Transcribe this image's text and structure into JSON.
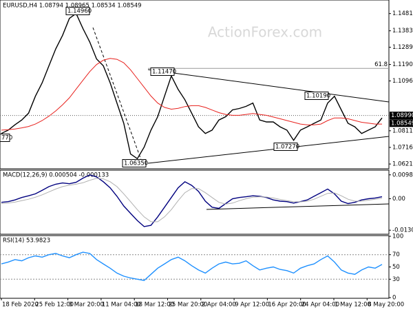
{
  "chart_data": [
    {
      "type": "line",
      "title": "EURUSD,H4 1.08794 1.08965 1.08534 1.08549",
      "watermark": "ActionForex.com",
      "x_labels": [
        "18 Feb 2020",
        "25 Feb 12:00",
        "3 Mar 20:00",
        "11 Mar 04:00",
        "18 Mar 12:00",
        "25 Mar 20:00",
        "2 Apr 04:00",
        "9 Apr 12:00",
        "16 Apr 20:00",
        "24 Apr 04:00",
        "1 May 12:00",
        "8 May 20:00"
      ],
      "series": [
        {
          "color": "#000000",
          "values": [
            1.0796,
            1.0815,
            1.0846,
            1.0873,
            1.0912,
            1.1009,
            1.1086,
            1.1183,
            1.128,
            1.1357,
            1.1454,
            1.1482,
            1.1396,
            1.1319,
            1.1222,
            1.1183,
            1.1086,
            1.097,
            1.0854,
            1.0679,
            1.0652,
            1.0718,
            1.0815,
            1.0892,
            1.1009,
            1.1125,
            1.1048,
            1.0989,
            1.0912,
            1.0834,
            1.0796,
            1.0815,
            1.0873,
            1.0892,
            1.0931,
            1.0939,
            1.0951,
            1.097,
            1.0873,
            1.0862,
            1.0862,
            1.0834,
            1.0815,
            1.0757,
            1.0815,
            1.0834,
            1.0854,
            1.0873,
            1.097,
            1.1009,
            1.0931,
            1.0854,
            1.0834,
            1.0796,
            1.0815,
            1.0834,
            1.0885
          ]
        },
        {
          "color": "#e8201c",
          "values": [
            1.0815,
            1.0818,
            1.0822,
            1.0828,
            1.0836,
            1.085,
            1.087,
            1.0895,
            1.0925,
            1.096,
            1.1,
            1.105,
            1.11,
            1.115,
            1.119,
            1.1215,
            1.1225,
            1.122,
            1.12,
            1.116,
            1.111,
            1.106,
            1.101,
            1.097,
            1.0945,
            1.0935,
            1.094,
            1.095,
            1.0955,
            1.0955,
            1.0945,
            1.093,
            1.0915,
            1.0905,
            1.09,
            1.09,
            1.0905,
            1.091,
            1.0905,
            1.09,
            1.089,
            1.088,
            1.087,
            1.086,
            1.085,
            1.0845,
            1.0845,
            1.085,
            1.087,
            1.0885,
            1.0885,
            1.088,
            1.087,
            1.086,
            1.0855,
            1.085,
            1.085
          ]
        }
      ],
      "ylim": [
        1.06021,
        1.15512
      ],
      "yticks": [
        {
          "value": 1.14815,
          "label": "1.14815"
        },
        {
          "value": 1.1383,
          "label": "1.13830"
        },
        {
          "value": 1.1289,
          "label": "1.12890"
        },
        {
          "value": 1.11905,
          "label": "1.11905"
        },
        {
          "value": 1.10965,
          "label": "1.10965"
        },
        {
          "value": 1.08115,
          "label": "1.08115"
        },
        {
          "value": 1.07165,
          "label": "1.07165"
        },
        {
          "value": 1.06215,
          "label": "1.06215"
        }
      ],
      "price_levels": [
        {
          "value": 1.0899,
          "label": "1.08990"
        },
        {
          "value": 1.08549,
          "label": "1.08549"
        }
      ],
      "fib_level": {
        "value": 1.1168,
        "label": "61.8"
      },
      "annotations": [
        "1.14960",
        "1.11470",
        "1.10190",
        "1.07270",
        "1.06350",
        "770"
      ]
    },
    {
      "type": "line",
      "title": "MACD(12,26,9) 0.000504 -0.000133",
      "series": [
        {
          "color": "#00007f",
          "values": [
            -0.0015,
            -0.0012,
            -0.0005,
            0.0005,
            0.0012,
            0.002,
            0.0035,
            0.005,
            0.006,
            0.0065,
            0.0062,
            0.0068,
            0.0085,
            0.0098,
            0.009,
            0.007,
            0.0045,
            0.001,
            -0.003,
            -0.006,
            -0.009,
            -0.0115,
            -0.011,
            -0.0075,
            -0.0035,
            0.0005,
            0.0045,
            0.007,
            0.0055,
            0.003,
            -0.001,
            -0.0035,
            -0.004,
            -0.002,
            0.0,
            0.0005,
            0.0008,
            0.0012,
            0.001,
            0.0005,
            -0.0005,
            -0.001,
            -0.0012,
            -0.0018,
            -0.0012,
            -0.0005,
            0.001,
            0.0025,
            0.004,
            0.002,
            -0.001,
            -0.002,
            -0.0015,
            -0.0005,
            0.0,
            0.0003,
            0.0008
          ]
        },
        {
          "color": "#b0b0b0",
          "values": [
            -0.002,
            -0.0018,
            -0.0014,
            -0.0008,
            -0.0002,
            0.0006,
            0.0016,
            0.0028,
            0.004,
            0.005,
            0.0056,
            0.006,
            0.0066,
            0.0076,
            0.0084,
            0.0082,
            0.007,
            0.005,
            0.002,
            -0.0012,
            -0.0045,
            -0.0075,
            -0.0095,
            -0.0095,
            -0.0075,
            -0.0045,
            -0.0008,
            0.0025,
            0.0042,
            0.0042,
            0.0025,
            0.0005,
            -0.0015,
            -0.0022,
            -0.0018,
            -0.0008,
            0.0,
            0.0006,
            0.0008,
            0.0007,
            0.0003,
            -0.0003,
            -0.0008,
            -0.0012,
            -0.0013,
            -0.001,
            -0.0002,
            0.001,
            0.0022,
            0.0024,
            0.0012,
            -0.0002,
            -0.001,
            -0.001,
            -0.0006,
            -0.0002,
            0.0002
          ]
        }
      ],
      "ylim": [
        -0.014091,
        0.011223
      ],
      "yticks": [
        0.009862,
        {
          "value": 0,
          "label": "0.00"
        },
        -0.013002
      ]
    },
    {
      "type": "line",
      "title": "RSI(14) 53.9823",
      "series": [
        {
          "color": "#1e90ff",
          "values": [
            55,
            58,
            62,
            60,
            65,
            68,
            66,
            70,
            72,
            68,
            65,
            70,
            74,
            72,
            62,
            55,
            48,
            40,
            35,
            32,
            30,
            28,
            38,
            48,
            55,
            62,
            66,
            60,
            52,
            45,
            40,
            48,
            55,
            58,
            55,
            56,
            60,
            52,
            45,
            48,
            50,
            46,
            44,
            40,
            48,
            52,
            55,
            62,
            68,
            58,
            45,
            40,
            38,
            45,
            50,
            48,
            54
          ]
        }
      ],
      "ylim": [
        0,
        100
      ],
      "yticks": [
        100,
        70,
        50,
        30,
        0
      ],
      "levels": [
        70,
        30
      ]
    }
  ]
}
